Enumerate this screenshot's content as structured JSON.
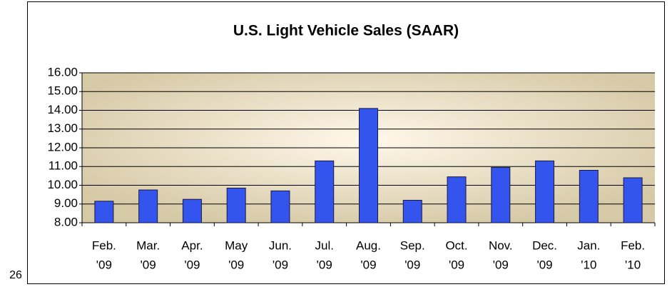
{
  "chart_data": {
    "type": "bar",
    "title": "U.S. Light Vehicle Sales (SAAR)",
    "categories": [
      [
        "Feb.",
        "'09"
      ],
      [
        "Mar.",
        "'09"
      ],
      [
        "Apr.",
        "'09"
      ],
      [
        "May",
        "'09"
      ],
      [
        "Jun.",
        "'09"
      ],
      [
        "Jul.",
        "'09"
      ],
      [
        "Aug.",
        "'09"
      ],
      [
        "Sep.",
        "'09"
      ],
      [
        "Oct.",
        "'09"
      ],
      [
        "Nov.",
        "'09"
      ],
      [
        "Dec.",
        "'09"
      ],
      [
        "Jan.",
        "'10"
      ],
      [
        "Feb.",
        "'10"
      ]
    ],
    "values": [
      9.15,
      9.75,
      9.25,
      9.85,
      9.7,
      11.3,
      14.1,
      9.2,
      10.45,
      10.95,
      11.3,
      10.8,
      10.4
    ],
    "color": "#3355ee",
    "ylim": [
      8,
      16
    ],
    "yticks": [
      {
        "value": 8,
        "label": "8.00"
      },
      {
        "value": 9,
        "label": "9.00"
      },
      {
        "value": 10,
        "label": "10.00"
      },
      {
        "value": 11,
        "label": "11.00"
      },
      {
        "value": 12,
        "label": "12.00"
      },
      {
        "value": 13,
        "label": "13.00"
      },
      {
        "value": 14,
        "label": "14.00"
      },
      {
        "value": 15,
        "label": "15.00"
      },
      {
        "value": 16,
        "label": "16.00"
      }
    ],
    "grid": true
  },
  "page_number": "26"
}
